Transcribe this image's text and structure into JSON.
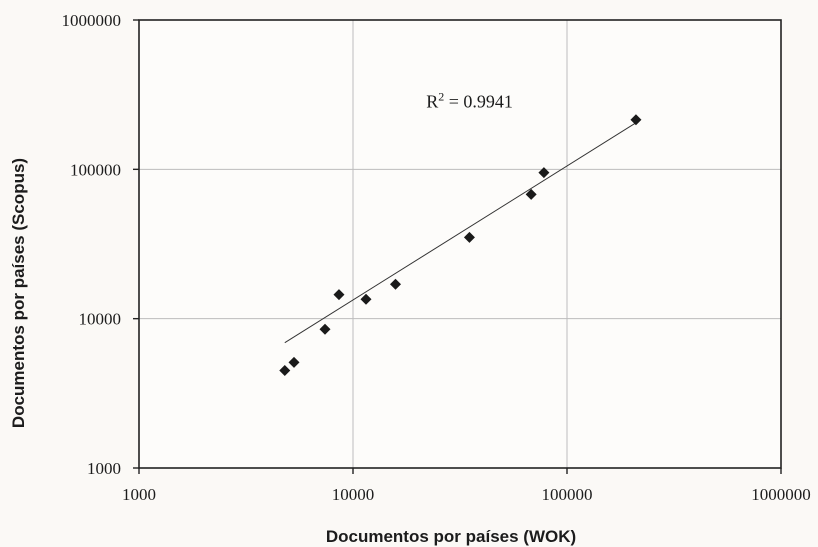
{
  "chart_data": {
    "type": "scatter",
    "title": "",
    "xlabel": "Documentos por países (WOK)",
    "ylabel": "Documentos por países (Scopus)",
    "x_scale": "log",
    "y_scale": "log",
    "xlim": [
      1000,
      1000000
    ],
    "ylim": [
      1000,
      1000000
    ],
    "x_ticks": [
      "1000",
      "10000",
      "100000",
      "1000000"
    ],
    "y_ticks": [
      "1000",
      "10000",
      "100000",
      "1000000"
    ],
    "grid": true,
    "legend": "none",
    "series": [
      {
        "marker": "diamond",
        "color": "#1a1a1a",
        "points": [
          {
            "x": 4800,
            "y": 4500
          },
          {
            "x": 5300,
            "y": 5100
          },
          {
            "x": 7400,
            "y": 8500
          },
          {
            "x": 8600,
            "y": 14500
          },
          {
            "x": 11500,
            "y": 13500
          },
          {
            "x": 15800,
            "y": 17000
          },
          {
            "x": 35000,
            "y": 35000
          },
          {
            "x": 68000,
            "y": 68000
          },
          {
            "x": 78000,
            "y": 95000
          },
          {
            "x": 210000,
            "y": 215000
          }
        ]
      }
    ],
    "trendline": {
      "type": "power",
      "color": "#333333",
      "x_start": 4800,
      "y_start": 6900,
      "x_end": 210000,
      "y_end": 205000
    },
    "annotation": {
      "text_prefix": "R",
      "superscript": "2",
      "text_suffix": " = 0.9941",
      "x": 22000,
      "y": 260000
    }
  }
}
